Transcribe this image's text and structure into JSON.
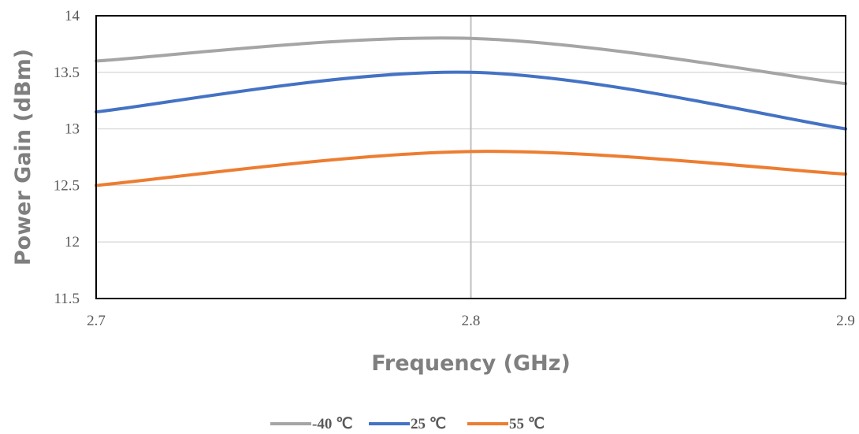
{
  "chart_data": {
    "type": "line",
    "xlabel": "Frequency (GHz)",
    "ylabel": "Power Gain (dBm)",
    "x": [
      2.7,
      2.8,
      2.9
    ],
    "xlim": [
      2.7,
      2.9
    ],
    "ylim": [
      11.5,
      14
    ],
    "xticks": [
      "2.7",
      "2.8",
      "2.9"
    ],
    "yticks": [
      "11.5",
      "12",
      "12.5",
      "13",
      "13.5",
      "14"
    ],
    "grid": "horizontal major gridlines",
    "legend_position": "bottom",
    "series": [
      {
        "name": "-40 ℃",
        "color": "#A5A5A5",
        "values": [
          13.6,
          13.8,
          13.4
        ]
      },
      {
        "name": "25 ℃",
        "color": "#4472C4",
        "values": [
          13.15,
          13.5,
          13.0
        ]
      },
      {
        "name": "55 ℃",
        "color": "#ED7D31",
        "values": [
          12.5,
          12.8,
          12.6
        ]
      }
    ]
  }
}
